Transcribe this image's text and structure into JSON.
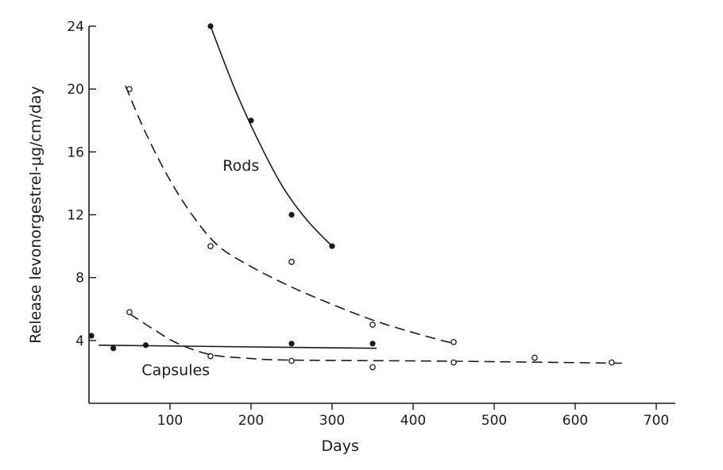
{
  "chart_data": {
    "type": "scatter",
    "xlabel": "Days",
    "ylabel": "Release levonorgestrel-μg/cm/day",
    "xlim": [
      0,
      720
    ],
    "ylim": [
      0,
      24
    ],
    "x_ticks": [
      100,
      200,
      300,
      400,
      500,
      600,
      700
    ],
    "y_ticks": [
      4,
      8,
      12,
      16,
      20,
      24
    ],
    "grid": false,
    "annotations": [
      {
        "text": "Rods",
        "x": 165,
        "y": 14.8
      },
      {
        "text": "Capsules",
        "x": 65,
        "y": 1.8
      }
    ],
    "series": [
      {
        "marker": "filled",
        "fit": "solid",
        "points": [
          [
            150,
            24
          ],
          [
            200,
            18
          ],
          [
            250,
            12
          ],
          [
            300,
            10
          ]
        ],
        "fit_curve": [
          [
            150,
            24
          ],
          [
            180,
            20
          ],
          [
            210,
            16.6
          ],
          [
            240,
            13.7
          ],
          [
            270,
            11.6
          ],
          [
            300,
            10
          ]
        ]
      },
      {
        "marker": "open",
        "fit": "dashed",
        "points": [
          [
            50,
            20
          ],
          [
            150,
            10
          ],
          [
            250,
            9
          ],
          [
            350,
            5
          ],
          [
            450,
            3.9
          ]
        ],
        "fit_curve": [
          [
            45,
            20.2
          ],
          [
            70,
            17.2
          ],
          [
            100,
            14.2
          ],
          [
            130,
            11.8
          ],
          [
            160,
            10
          ],
          [
            200,
            8.7
          ],
          [
            250,
            7.4
          ],
          [
            300,
            6.3
          ],
          [
            350,
            5.3
          ],
          [
            400,
            4.5
          ],
          [
            450,
            3.8
          ]
        ]
      },
      {
        "marker": "filled",
        "fit": "solid",
        "points": [
          [
            3,
            4.3
          ],
          [
            30,
            3.5
          ],
          [
            70,
            3.7
          ],
          [
            250,
            3.8
          ],
          [
            350,
            3.8
          ]
        ],
        "fit_curve": [
          [
            12,
            3.7
          ],
          [
            355,
            3.5
          ]
        ]
      },
      {
        "marker": "open",
        "fit": "dashed",
        "points": [
          [
            50,
            5.8
          ],
          [
            150,
            3
          ],
          [
            250,
            2.7
          ],
          [
            350,
            2.3
          ],
          [
            450,
            2.6
          ],
          [
            550,
            2.9
          ],
          [
            645,
            2.6
          ]
        ],
        "fit_curve": [
          [
            50,
            5.7
          ],
          [
            80,
            4.7
          ],
          [
            110,
            3.8
          ],
          [
            150,
            3.1
          ],
          [
            200,
            2.85
          ],
          [
            250,
            2.75
          ],
          [
            400,
            2.7
          ],
          [
            500,
            2.65
          ],
          [
            660,
            2.55
          ]
        ]
      }
    ]
  }
}
